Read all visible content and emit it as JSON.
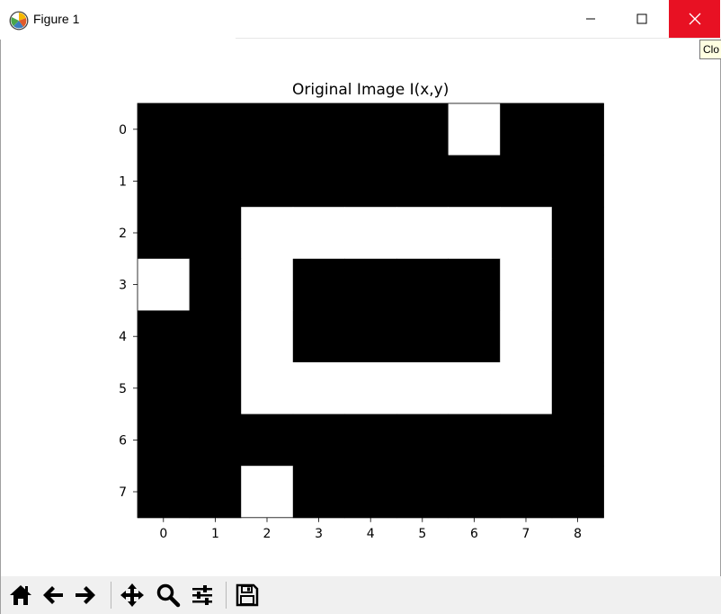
{
  "window": {
    "title": "Figure 1",
    "tooltip": "Clo"
  },
  "toolbar": {
    "buttons": [
      "home-icon",
      "back-arrow-icon",
      "forward-arrow-icon",
      "pan-move-icon",
      "zoom-magnifier-icon",
      "configure-subplots-icon",
      "save-disk-icon"
    ]
  },
  "chart_data": {
    "type": "heatmap",
    "title": "Original Image I(x,y)",
    "colormap": "gray",
    "xticks": [
      "0",
      "1",
      "2",
      "3",
      "4",
      "5",
      "6",
      "7",
      "8"
    ],
    "yticks": [
      "0",
      "1",
      "2",
      "3",
      "4",
      "5",
      "6",
      "7"
    ],
    "xlim": [
      -0.5,
      8.5
    ],
    "ylim": [
      7.5,
      -0.5
    ],
    "z": [
      [
        0,
        0,
        0,
        0,
        0,
        0,
        1,
        0,
        0
      ],
      [
        0,
        0,
        0,
        0,
        0,
        0,
        0,
        0,
        0
      ],
      [
        0,
        0,
        1,
        1,
        1,
        1,
        1,
        1,
        0
      ],
      [
        1,
        0,
        1,
        0,
        0,
        0,
        0,
        1,
        0
      ],
      [
        0,
        0,
        1,
        0,
        0,
        0,
        0,
        1,
        0
      ],
      [
        0,
        0,
        1,
        1,
        1,
        1,
        1,
        1,
        0
      ],
      [
        0,
        0,
        0,
        0,
        0,
        0,
        0,
        0,
        0
      ],
      [
        0,
        0,
        1,
        0,
        0,
        0,
        0,
        0,
        0
      ]
    ]
  }
}
